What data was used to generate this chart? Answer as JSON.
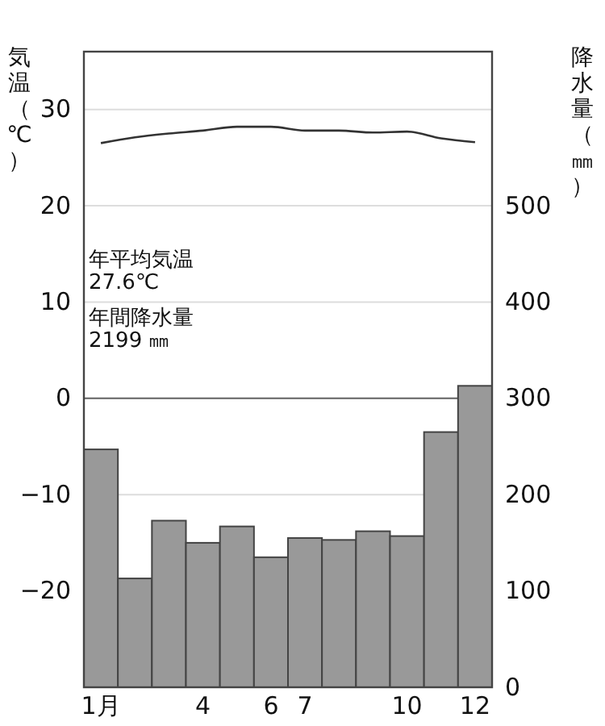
{
  "chart_data": {
    "type": "bar",
    "ylabel": "気温（℃）",
    "y2label": "降水量（㎜）",
    "categories": [
      "1月",
      null,
      null,
      "4",
      null,
      "6",
      "7",
      null,
      null,
      "10",
      null,
      "12"
    ],
    "series": [
      {
        "axis": "y2",
        "color": "#999999",
        "values": [
          247,
          113,
          173,
          150,
          167,
          135,
          155,
          153,
          162,
          157,
          265,
          313
        ]
      },
      {
        "type": "line",
        "color": "#333333",
        "values": [
          26.5,
          27.1,
          27.5,
          27.8,
          28.2,
          28.2,
          27.8,
          27.8,
          27.6,
          27.7,
          27.0,
          26.6
        ]
      }
    ],
    "ylim": [
      -30,
      36
    ],
    "yticks": [
      {
        "value": -20,
        "label": "−20"
      },
      {
        "value": -10,
        "label": "−10"
      },
      0,
      10,
      20,
      30
    ],
    "y2lim": [
      0,
      660
    ],
    "y2ticks": [
      0,
      100,
      200,
      300,
      400,
      500
    ],
    "grid": "y",
    "ref_lines": [
      {
        "axis": "y",
        "value": 0,
        "color": "#666666"
      }
    ],
    "annotations": [
      "年平均気温",
      "27.6℃",
      "年間降水量",
      "2199 ㎜"
    ]
  }
}
